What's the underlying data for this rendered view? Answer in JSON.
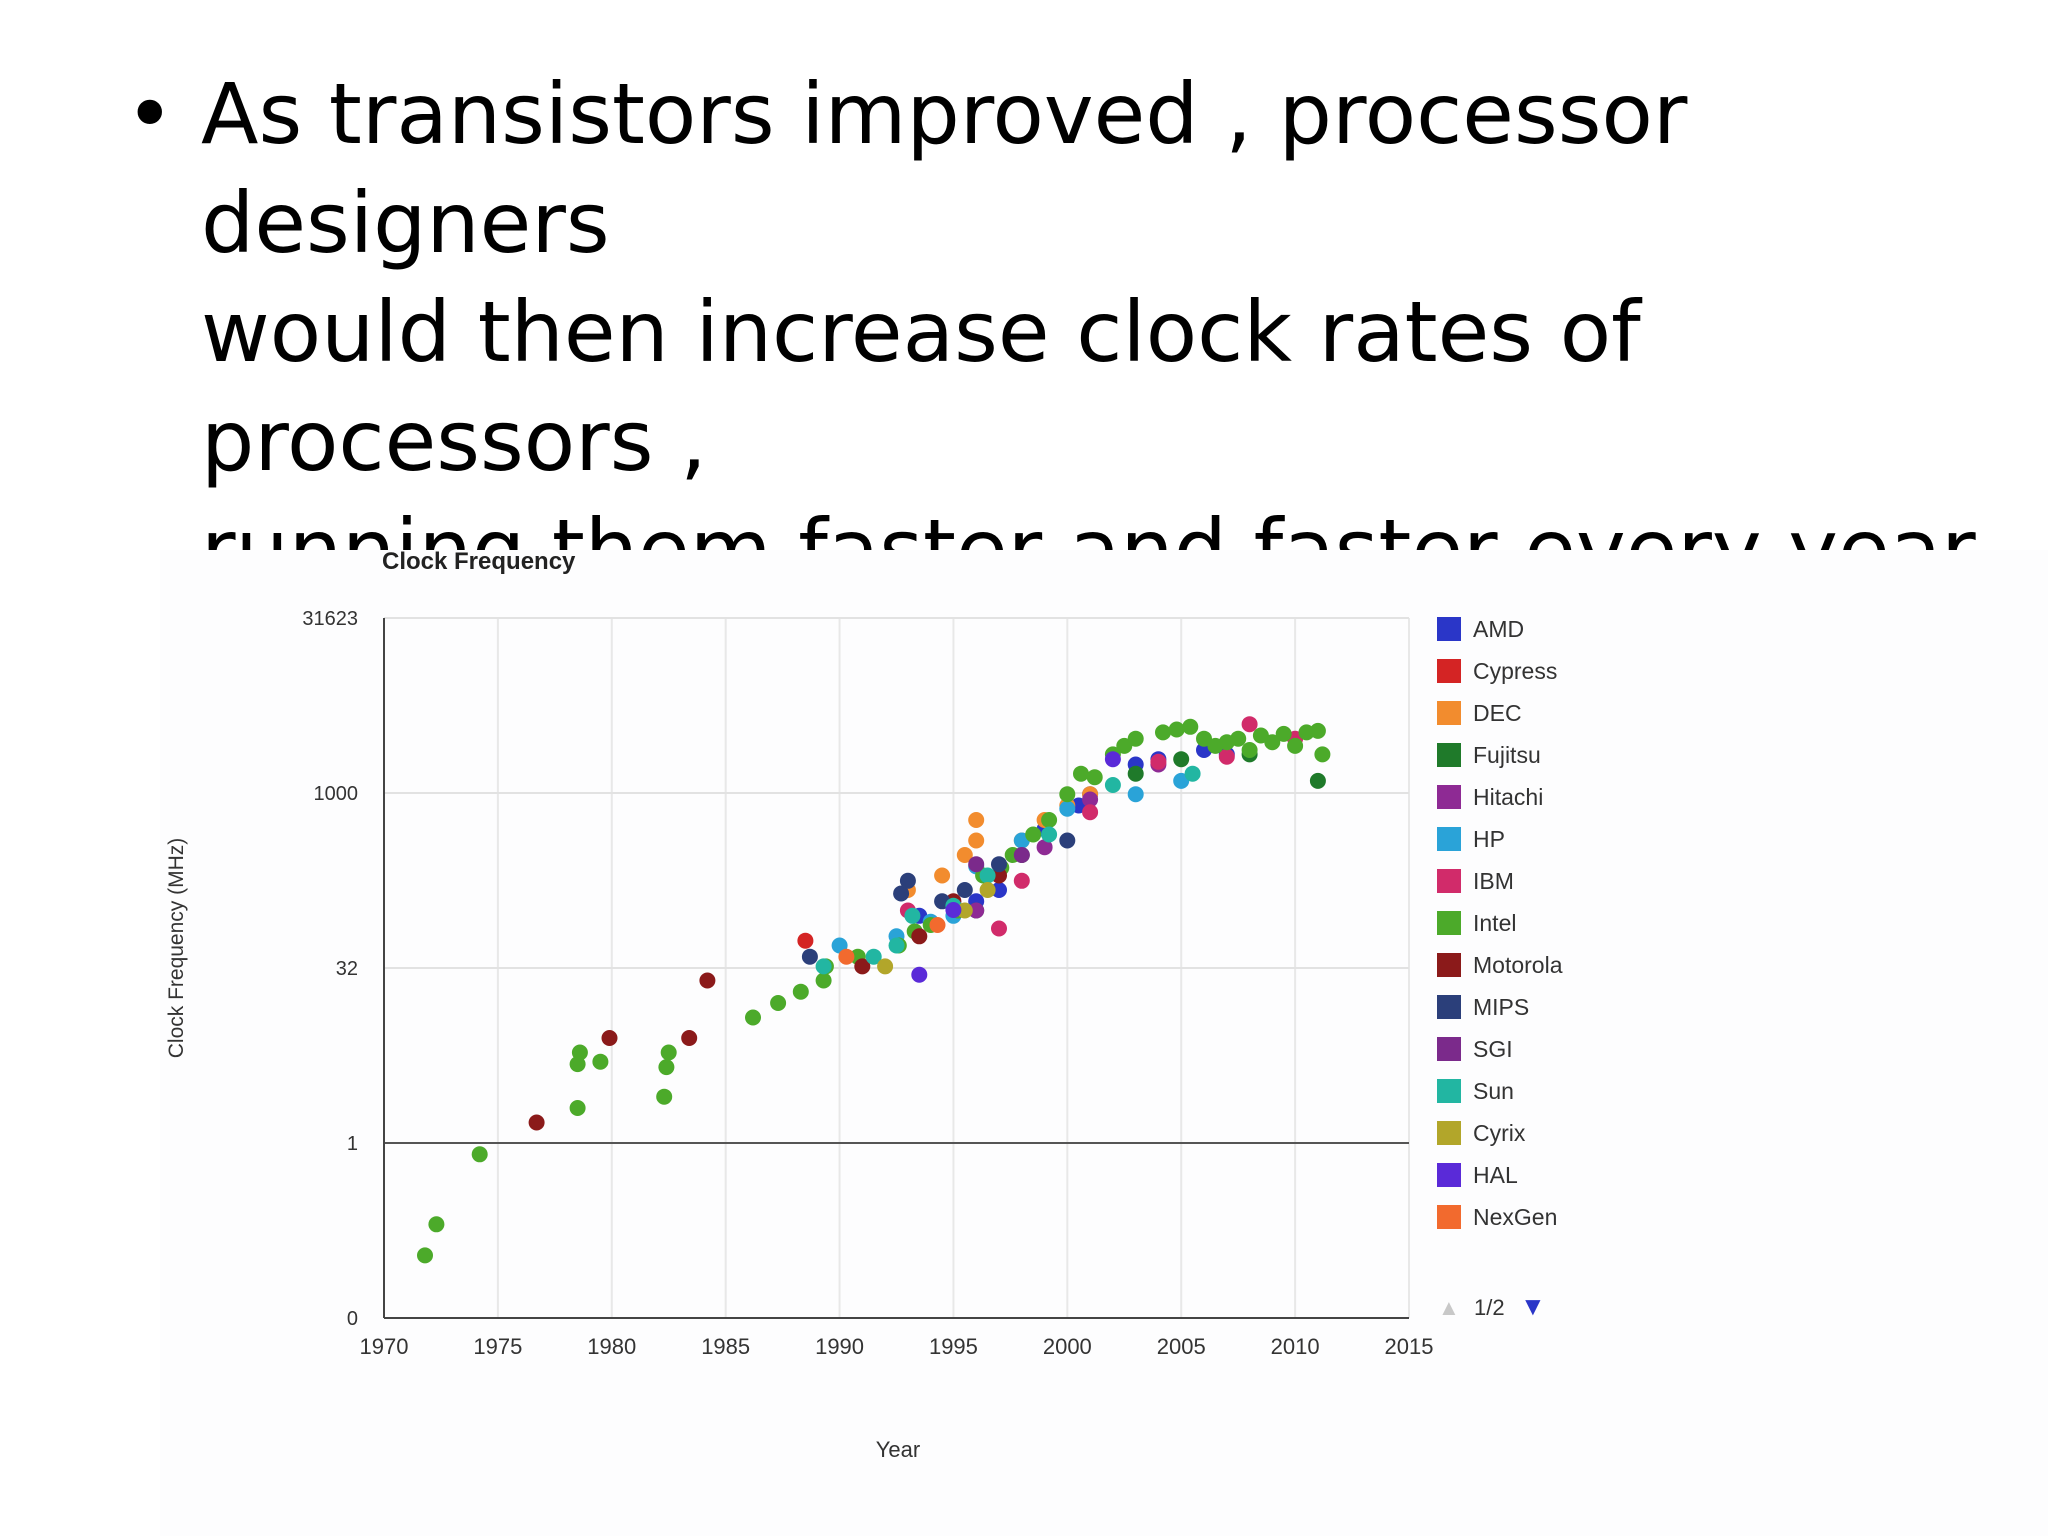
{
  "slide": {
    "bullet_symbol": "•",
    "lines": [
      "As transistors improved , processor designers",
      "would then increase clock rates of processors ,",
      "running them faster and faster every year"
    ]
  },
  "colors": {
    "AMD": "#2a36c8",
    "Cypress": "#d42424",
    "DEC": "#f28c2e",
    "Fujitsu": "#1f7a2a",
    "Hitachi": "#8e2a94",
    "HP": "#2aa3d8",
    "IBM": "#d12b6a",
    "Intel": "#4caa2a",
    "Motorola": "#8b1a1a",
    "MIPS": "#2b3f7a",
    "SGI": "#7b2a8b",
    "Sun": "#22b6a2",
    "Cyrix": "#b2a62a",
    "HAL": "#5a2ad8",
    "NexGen": "#f26a2e"
  },
  "chart_data": {
    "type": "scatter",
    "title": "Clock Frequency",
    "xlabel": "Year",
    "ylabel": "Clock Frequency (MHz)",
    "xlim": [
      1970,
      2015
    ],
    "ylim": [
      0,
      31623
    ],
    "y_scale": "log",
    "x_ticks": [
      "1970",
      "1975",
      "1980",
      "1985",
      "1990",
      "1995",
      "2000",
      "2005",
      "2010",
      "2015"
    ],
    "y_ticks": [
      {
        "label": "0",
        "value": 0
      },
      {
        "label": "1",
        "value": 1
      },
      {
        "label": "32",
        "value": 32
      },
      {
        "label": "1000",
        "value": 1000
      },
      {
        "label": "31623",
        "value": 31623
      }
    ],
    "grid": true,
    "legend_position": "right",
    "legend_pager": {
      "prev": "▲",
      "text": "1/2",
      "next": "▼"
    },
    "series": [
      {
        "name": "AMD",
        "points": [
          [
            1993.5,
            90
          ],
          [
            1996,
            120
          ],
          [
            1997,
            150
          ],
          [
            1999,
            500
          ],
          [
            2000.5,
            800
          ],
          [
            2001,
            1000
          ],
          [
            2003,
            1800
          ],
          [
            2004,
            2000
          ],
          [
            2006,
            2400
          ],
          [
            2007,
            2200
          ]
        ]
      },
      {
        "name": "Cypress",
        "points": [
          [
            1988.5,
            55
          ]
        ]
      },
      {
        "name": "DEC",
        "points": [
          [
            1993,
            150
          ],
          [
            1994.5,
            200
          ],
          [
            1995.5,
            300
          ],
          [
            1996,
            400
          ],
          [
            1996,
            600
          ],
          [
            1998,
            400
          ],
          [
            1999,
            600
          ],
          [
            2000,
            800
          ],
          [
            2001,
            1000
          ]
        ]
      },
      {
        "name": "Fujitsu",
        "points": [
          [
            1996,
            100
          ],
          [
            1998,
            300
          ],
          [
            2003,
            1500
          ],
          [
            2005,
            2000
          ],
          [
            2008,
            2200
          ],
          [
            2011,
            1300
          ]
        ]
      },
      {
        "name": "Hitachi",
        "points": [
          [
            1996,
            100
          ],
          [
            1999,
            350
          ],
          [
            2001,
            900
          ],
          [
            2004,
            1800
          ]
        ]
      },
      {
        "name": "HP",
        "points": [
          [
            1990,
            50
          ],
          [
            1992.5,
            60
          ],
          [
            1994,
            80
          ],
          [
            1995,
            90
          ],
          [
            1996,
            240
          ],
          [
            1998,
            400
          ],
          [
            2000,
            750
          ],
          [
            2003,
            1000
          ],
          [
            2005,
            1300
          ]
        ]
      },
      {
        "name": "IBM",
        "points": [
          [
            1993,
            100
          ],
          [
            1997,
            70
          ],
          [
            1998,
            180
          ],
          [
            2001,
            700
          ],
          [
            2004,
            1900
          ],
          [
            2007,
            2100
          ],
          [
            2008,
            4000
          ],
          [
            2010,
            3000
          ]
        ]
      },
      {
        "name": "Intel",
        "points": [
          [
            1971.8,
            0.108
          ],
          [
            1972.3,
            0.2
          ],
          [
            1974.2,
            0.8
          ],
          [
            1978.5,
            2
          ],
          [
            1978.5,
            4.77
          ],
          [
            1978.6,
            6
          ],
          [
            1979.5,
            5
          ],
          [
            1982.3,
            2.5
          ],
          [
            1982.4,
            4.5
          ],
          [
            1982.5,
            6
          ],
          [
            1986.2,
            12
          ],
          [
            1987.3,
            16
          ],
          [
            1988.3,
            20
          ],
          [
            1989.3,
            25
          ],
          [
            1989.4,
            33
          ],
          [
            1990.8,
            40
          ],
          [
            1992.6,
            50
          ],
          [
            1993.3,
            66
          ],
          [
            1994,
            75
          ],
          [
            1995.2,
            100
          ],
          [
            1996.3,
            200
          ],
          [
            1997.1,
            233
          ],
          [
            1997.6,
            300
          ],
          [
            1998.5,
            450
          ],
          [
            1999.2,
            600
          ],
          [
            2000,
            1000
          ],
          [
            2000.6,
            1500
          ],
          [
            2001.2,
            1400
          ],
          [
            2002,
            2200
          ],
          [
            2002.5,
            2600
          ],
          [
            2003,
            3000
          ],
          [
            2004.2,
            3400
          ],
          [
            2004.8,
            3600
          ],
          [
            2005.4,
            3800
          ],
          [
            2006,
            3000
          ],
          [
            2006.5,
            2600
          ],
          [
            2007,
            2800
          ],
          [
            2007.5,
            3000
          ],
          [
            2008,
            2400
          ],
          [
            2008.5,
            3200
          ],
          [
            2009,
            2800
          ],
          [
            2009.5,
            3300
          ],
          [
            2010,
            2600
          ],
          [
            2010.5,
            3400
          ],
          [
            2011,
            3500
          ],
          [
            2011.2,
            2200
          ]
        ]
      },
      {
        "name": "Motorola",
        "points": [
          [
            1976.7,
            1.5
          ],
          [
            1979.9,
            8
          ],
          [
            1983.4,
            8
          ],
          [
            1984.2,
            25
          ],
          [
            1991,
            33
          ],
          [
            1993.5,
            60
          ],
          [
            1995,
            120
          ],
          [
            1997,
            200
          ]
        ]
      },
      {
        "name": "MIPS",
        "points": [
          [
            1988.7,
            40
          ],
          [
            1992.7,
            140
          ],
          [
            1993,
            180
          ],
          [
            1994.5,
            120
          ],
          [
            1995.5,
            150
          ],
          [
            1997,
            250
          ],
          [
            2000,
            400
          ]
        ]
      },
      {
        "name": "SGI",
        "points": [
          [
            1996,
            250
          ],
          [
            1998,
            300
          ]
        ]
      },
      {
        "name": "Sun",
        "points": [
          [
            1989.3,
            33
          ],
          [
            1991.5,
            40
          ],
          [
            1992.5,
            50
          ],
          [
            1993.2,
            90
          ],
          [
            1995,
            110
          ],
          [
            1996.5,
            200
          ],
          [
            1999.2,
            450
          ],
          [
            2002,
            1200
          ],
          [
            2005.5,
            1500
          ]
        ]
      },
      {
        "name": "Cyrix",
        "points": [
          [
            1992,
            33
          ],
          [
            1995.5,
            100
          ],
          [
            1996.5,
            150
          ]
        ]
      },
      {
        "name": "HAL",
        "points": [
          [
            1993.5,
            28
          ],
          [
            1995,
            101
          ],
          [
            2002,
            2000
          ]
        ]
      },
      {
        "name": "NexGen",
        "points": [
          [
            1990.3,
            40
          ],
          [
            1994.3,
            75
          ]
        ]
      }
    ]
  }
}
